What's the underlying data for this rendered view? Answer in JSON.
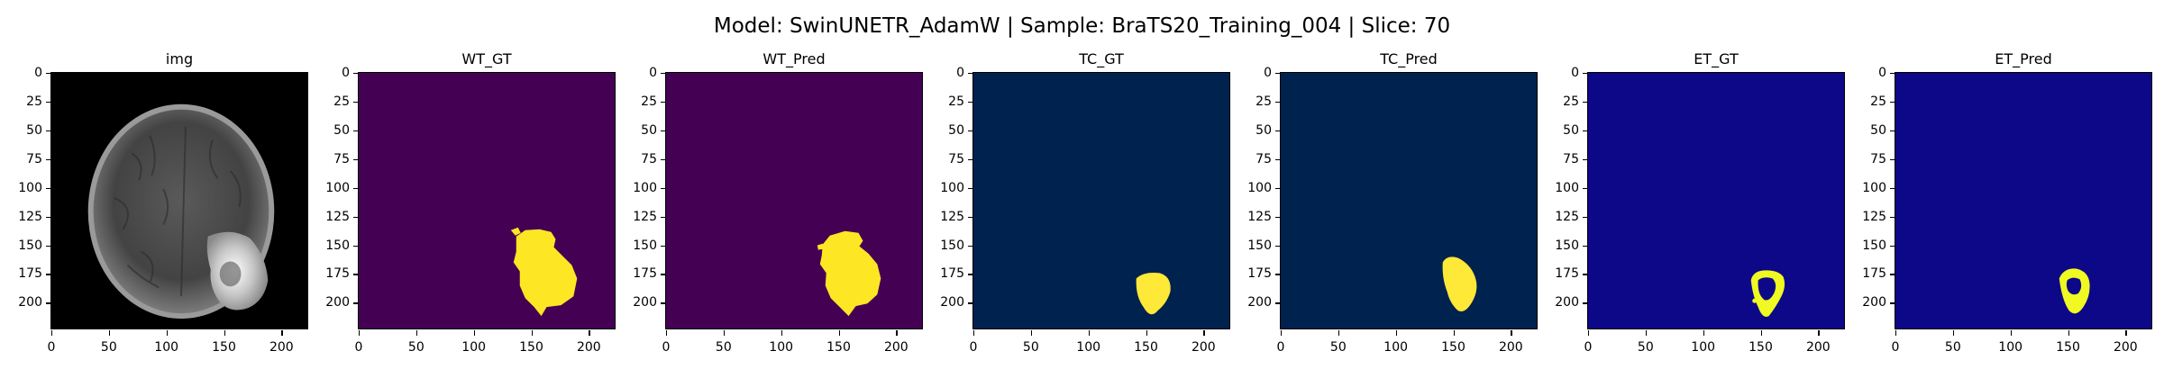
{
  "figure": {
    "title": "Model: SwinUNETR_AdamW | Sample: BraTS20_Training_004 | Slice: 70"
  },
  "axes": {
    "yticks": [
      "0",
      "25",
      "50",
      "75",
      "100",
      "125",
      "150",
      "175",
      "200"
    ],
    "ytick_values": [
      0,
      25,
      50,
      75,
      100,
      125,
      150,
      175,
      200
    ],
    "xticks": [
      "0",
      "50",
      "100",
      "150",
      "200"
    ],
    "xtick_values": [
      0,
      50,
      100,
      150,
      200
    ],
    "range": [
      0,
      224
    ]
  },
  "panels": [
    {
      "title": "img",
      "kind": "mri",
      "background": "#000000",
      "foreground": "#ffffff"
    },
    {
      "title": "WT_GT",
      "kind": "wt_gt",
      "background": "#440154",
      "foreground": "#fde725"
    },
    {
      "title": "WT_Pred",
      "kind": "wt_pr",
      "background": "#440154",
      "foreground": "#fde725"
    },
    {
      "title": "TC_GT",
      "kind": "tc_gt",
      "background": "#00224e",
      "foreground": "#fee838"
    },
    {
      "title": "TC_Pred",
      "kind": "tc_pr",
      "background": "#00224e",
      "foreground": "#fee838"
    },
    {
      "title": "ET_GT",
      "kind": "et_gt",
      "background": "#0d0887",
      "foreground": "#f0f921"
    },
    {
      "title": "ET_Pred",
      "kind": "et_pr",
      "background": "#0d0887",
      "foreground": "#f0f921"
    }
  ]
}
